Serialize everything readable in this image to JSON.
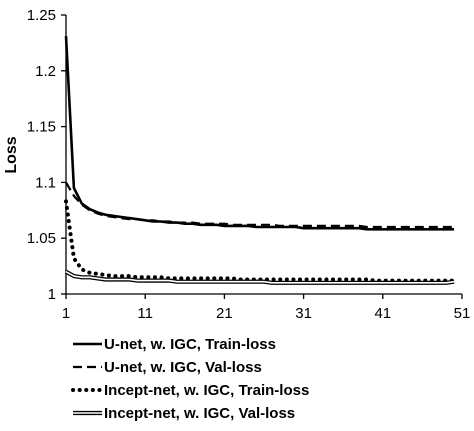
{
  "chart_data": {
    "type": "line",
    "title": "",
    "xlabel": "",
    "ylabel": "Loss",
    "xlim": [
      1,
      51
    ],
    "ylim": [
      1,
      1.25
    ],
    "x_ticks": [
      "1",
      "11",
      "21",
      "31",
      "41",
      "51"
    ],
    "y_ticks": [
      "1",
      "1.05",
      "1.1",
      "1.15",
      "1.2",
      "1.25"
    ],
    "grid": false,
    "legend_position": "bottom",
    "x": [
      1,
      2,
      3,
      4,
      5,
      6,
      7,
      8,
      9,
      10,
      11,
      12,
      13,
      14,
      15,
      16,
      17,
      18,
      19,
      20,
      21,
      22,
      23,
      24,
      25,
      26,
      27,
      28,
      29,
      30,
      31,
      32,
      33,
      34,
      35,
      36,
      37,
      38,
      39,
      40,
      41,
      42,
      43,
      44,
      45,
      46,
      47,
      48,
      49,
      50
    ],
    "series": [
      {
        "name": "U-net, w. IGC, Train-loss",
        "style": "solid",
        "values": [
          1.231,
          1.095,
          1.081,
          1.076,
          1.073,
          1.071,
          1.07,
          1.069,
          1.068,
          1.067,
          1.066,
          1.065,
          1.065,
          1.064,
          1.064,
          1.063,
          1.063,
          1.062,
          1.062,
          1.062,
          1.061,
          1.061,
          1.061,
          1.061,
          1.06,
          1.06,
          1.06,
          1.06,
          1.06,
          1.06,
          1.059,
          1.059,
          1.059,
          1.059,
          1.059,
          1.059,
          1.059,
          1.059,
          1.058,
          1.058,
          1.058,
          1.058,
          1.058,
          1.058,
          1.058,
          1.058,
          1.058,
          1.058,
          1.058,
          1.058
        ]
      },
      {
        "name": "U-net, w. IGC, Val-loss",
        "style": "dashed",
        "values": [
          1.1,
          1.088,
          1.08,
          1.075,
          1.072,
          1.07,
          1.069,
          1.068,
          1.067,
          1.067,
          1.066,
          1.066,
          1.065,
          1.065,
          1.064,
          1.064,
          1.064,
          1.063,
          1.063,
          1.063,
          1.063,
          1.062,
          1.062,
          1.062,
          1.062,
          1.062,
          1.062,
          1.061,
          1.061,
          1.061,
          1.061,
          1.061,
          1.061,
          1.061,
          1.061,
          1.061,
          1.061,
          1.061,
          1.06,
          1.06,
          1.06,
          1.06,
          1.06,
          1.06,
          1.06,
          1.06,
          1.06,
          1.06,
          1.06,
          1.06
        ]
      },
      {
        "name": "Incept-net, w. IGC, Train-loss",
        "style": "dotted",
        "values": [
          1.083,
          1.032,
          1.022,
          1.019,
          1.018,
          1.017,
          1.016,
          1.016,
          1.016,
          1.015,
          1.015,
          1.015,
          1.015,
          1.014,
          1.014,
          1.014,
          1.014,
          1.014,
          1.014,
          1.014,
          1.014,
          1.014,
          1.013,
          1.013,
          1.013,
          1.013,
          1.013,
          1.013,
          1.013,
          1.013,
          1.013,
          1.013,
          1.013,
          1.013,
          1.013,
          1.013,
          1.013,
          1.013,
          1.013,
          1.012,
          1.012,
          1.012,
          1.012,
          1.012,
          1.012,
          1.012,
          1.012,
          1.012,
          1.012,
          1.012
        ]
      },
      {
        "name": "Incept-net, w. IGC, Val-loss",
        "style": "double",
        "values": [
          1.02,
          1.016,
          1.015,
          1.015,
          1.014,
          1.013,
          1.013,
          1.013,
          1.013,
          1.012,
          1.012,
          1.012,
          1.012,
          1.012,
          1.011,
          1.011,
          1.011,
          1.011,
          1.011,
          1.011,
          1.011,
          1.011,
          1.011,
          1.011,
          1.011,
          1.011,
          1.01,
          1.01,
          1.01,
          1.01,
          1.01,
          1.01,
          1.01,
          1.01,
          1.01,
          1.01,
          1.01,
          1.01,
          1.01,
          1.01,
          1.01,
          1.01,
          1.01,
          1.01,
          1.01,
          1.01,
          1.01,
          1.01,
          1.01,
          1.011
        ]
      }
    ]
  }
}
